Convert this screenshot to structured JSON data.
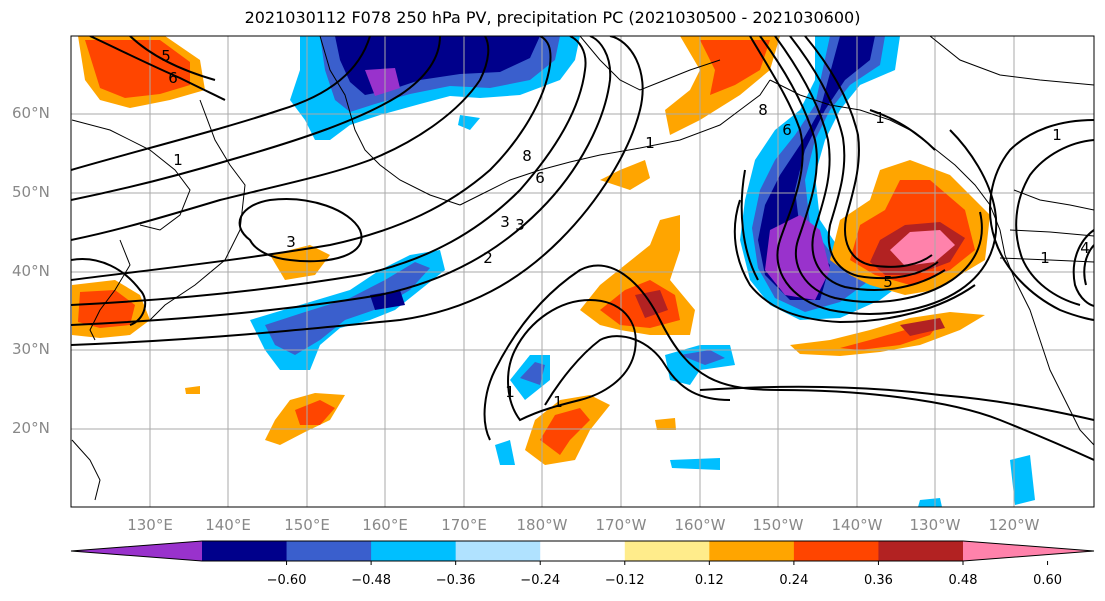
{
  "title": "2021030112 F078 250 hPa PV, precipitation PC (2021030500 - 2021030600)",
  "lat_labels": [
    "60°N",
    "50°N",
    "40°N",
    "30°N",
    "20°N"
  ],
  "lon_labels": [
    "130°E",
    "140°E",
    "150°E",
    "160°E",
    "170°E",
    "180°W",
    "170°W",
    "160°W",
    "150°W",
    "140°W",
    "130°W",
    "120°W"
  ],
  "colorbar": {
    "ticks": [
      "−0.60",
      "−0.48",
      "−0.36",
      "−0.24",
      "−0.12",
      "0.12",
      "0.24",
      "0.36",
      "0.48",
      "0.60"
    ],
    "colors": [
      "#9932CC",
      "#00008B",
      "#3A5FCD",
      "#00BFFF",
      "#B0E2FF",
      "#FFFFFF",
      "#FFEC8B",
      "#FFA500",
      "#FF4500",
      "#B22222",
      "#FF82AB"
    ]
  },
  "contour_labels": [
    "5",
    "6",
    "1",
    "3",
    "8",
    "6",
    "1",
    "2",
    "3",
    "3",
    "1",
    "1",
    "8",
    "6",
    "1",
    "1",
    "5",
    "1",
    "4"
  ]
}
